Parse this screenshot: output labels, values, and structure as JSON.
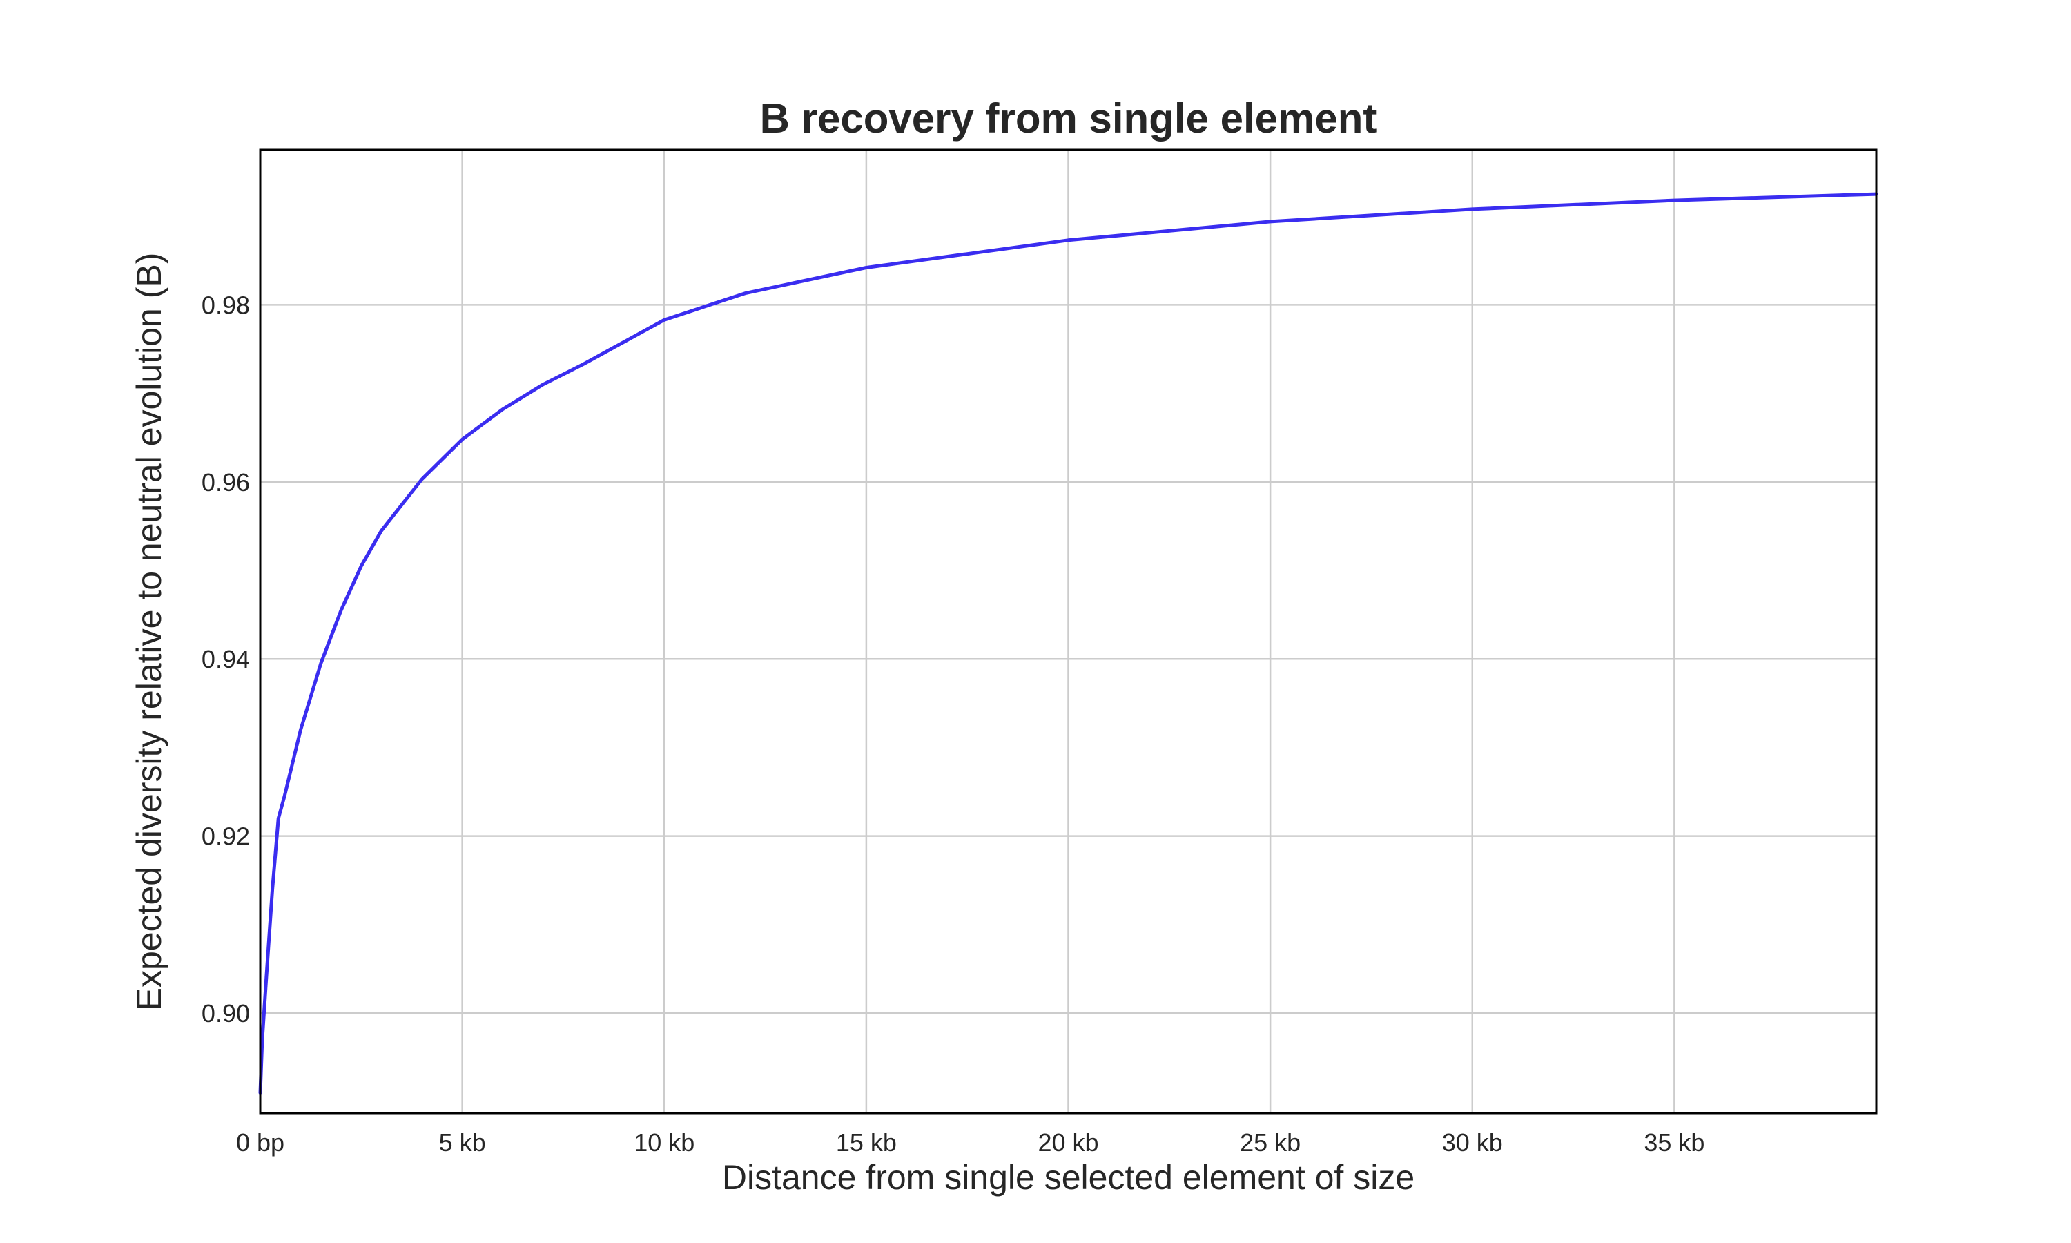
{
  "chart_data": {
    "type": "line",
    "title": "B recovery from single element",
    "xlabel": "Distance from single selected element of size",
    "ylabel": "Expected diversity relative to neutral evolution (B)",
    "xlim": [
      0,
      40000
    ],
    "ylim": [
      0.8887,
      0.9975
    ],
    "grid": true,
    "legend": "none",
    "colors": {
      "line": "#3a2df0",
      "grid": "#cccccc",
      "frame": "#000000",
      "text": "#262626"
    },
    "x_ticks": [
      {
        "value": 0,
        "label": "0 bp"
      },
      {
        "value": 5000,
        "label": "5 kb"
      },
      {
        "value": 10000,
        "label": "10 kb"
      },
      {
        "value": 15000,
        "label": "15 kb"
      },
      {
        "value": 20000,
        "label": "20 kb"
      },
      {
        "value": 25000,
        "label": "25 kb"
      },
      {
        "value": 30000,
        "label": "30 kb"
      },
      {
        "value": 35000,
        "label": "35 kb"
      }
    ],
    "y_ticks": [
      {
        "value": 0.9,
        "label": "0.90"
      },
      {
        "value": 0.92,
        "label": "0.92"
      },
      {
        "value": 0.94,
        "label": "0.94"
      },
      {
        "value": 0.96,
        "label": "0.96"
      },
      {
        "value": 0.98,
        "label": "0.98"
      }
    ],
    "series": [
      {
        "x": [
          0,
          50,
          150,
          300,
          450,
          600,
          1000,
          1500,
          2000,
          2500,
          3000,
          4000,
          5000,
          6000,
          7000,
          8000,
          10000,
          12000,
          15000,
          20000,
          25000,
          30000,
          35000,
          40000
        ],
        "y": [
          0.891,
          0.897,
          0.904,
          0.914,
          0.922,
          0.9245,
          0.932,
          0.9395,
          0.9455,
          0.9505,
          0.9545,
          0.9603,
          0.9648,
          0.9682,
          0.971,
          0.9733,
          0.9783,
          0.9813,
          0.9842,
          0.9873,
          0.9894,
          0.9908,
          0.9918,
          0.9925
        ]
      }
    ]
  }
}
